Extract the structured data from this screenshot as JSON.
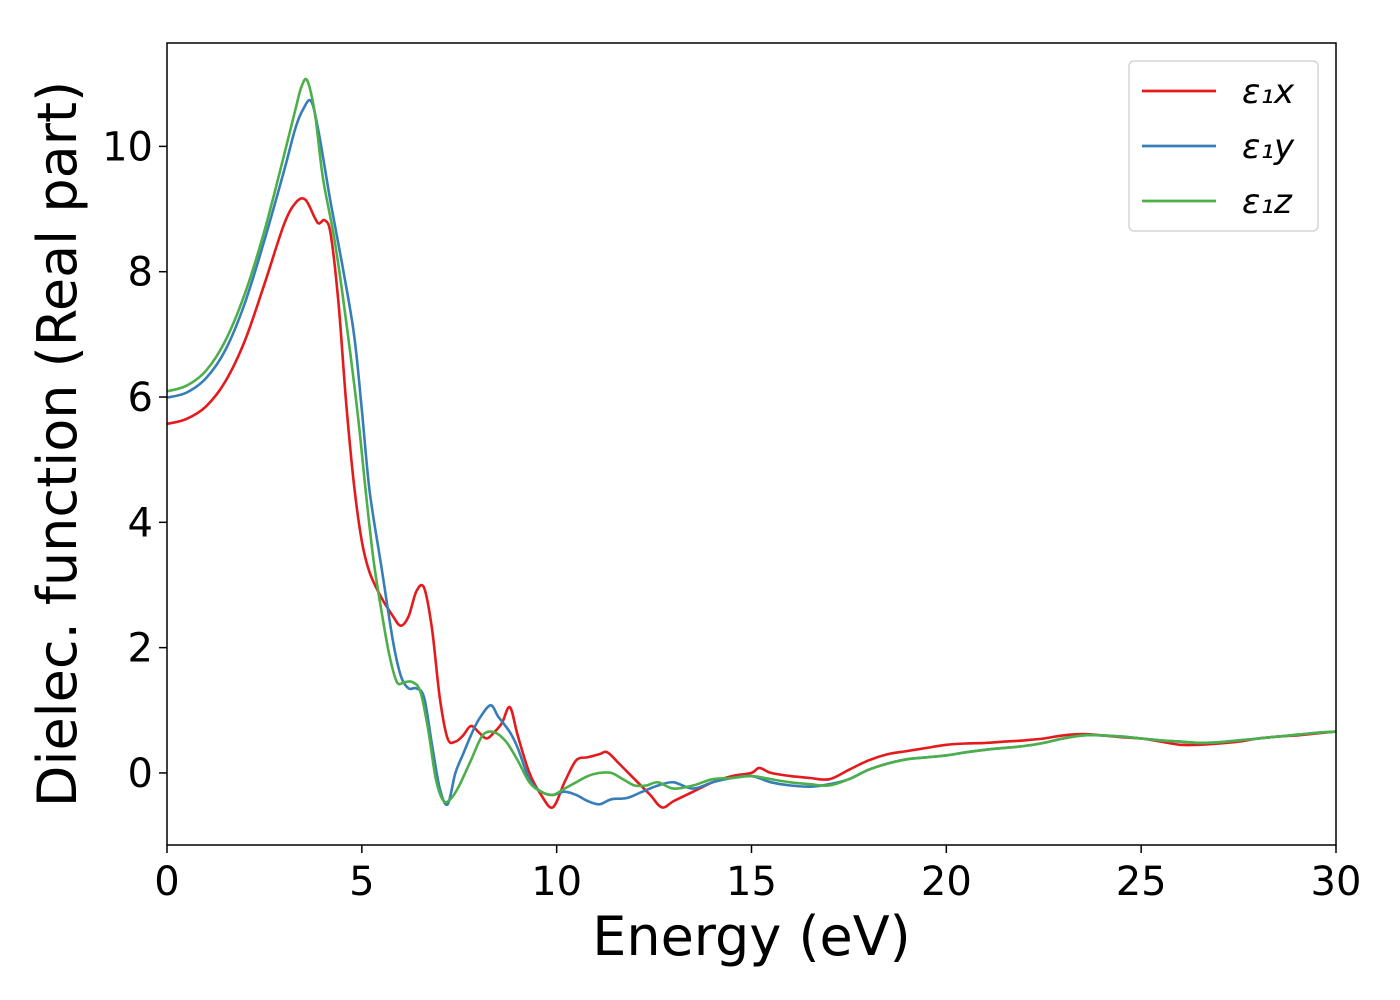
{
  "chart_data": {
    "type": "line",
    "xlabel": "Energy (eV)",
    "ylabel": "Dielec. function (Real part)",
    "xlim": [
      0,
      30
    ],
    "ylim": [
      -1.15,
      11.65
    ],
    "xticks": [
      0,
      5,
      10,
      15,
      20,
      25,
      30
    ],
    "yticks": [
      0,
      2,
      4,
      6,
      8,
      10
    ],
    "grid": false,
    "legend_position": "top-right",
    "series": [
      {
        "name": "ε₁x",
        "color": "#e41a1c",
        "x": [
          0,
          0.5,
          1,
          1.5,
          2,
          2.5,
          3,
          3.3,
          3.55,
          3.8,
          3.9,
          4.05,
          4.2,
          4.4,
          4.6,
          4.8,
          5,
          5.2,
          5.5,
          5.8,
          6.0,
          6.2,
          6.4,
          6.6,
          6.8,
          7.0,
          7.2,
          7.4,
          7.6,
          7.8,
          8.0,
          8.2,
          8.4,
          8.6,
          8.8,
          9.0,
          9.3,
          9.6,
          9.9,
          10.2,
          10.5,
          10.8,
          11.1,
          11.3,
          11.6,
          12.0,
          12.4,
          12.7,
          13.0,
          13.5,
          14.0,
          14.5,
          15.0,
          15.2,
          15.5,
          16.0,
          16.5,
          17.0,
          17.5,
          18.0,
          18.5,
          19.0,
          19.5,
          20.0,
          20.5,
          21.0,
          21.5,
          22.0,
          22.5,
          23.0,
          23.5,
          24.0,
          24.5,
          25.0,
          25.5,
          26.0,
          26.5,
          27.0,
          27.5,
          28.0,
          28.5,
          29.0,
          29.5,
          30.0
        ],
        "y": [
          5.57,
          5.65,
          5.85,
          6.25,
          6.9,
          7.8,
          8.75,
          9.1,
          9.15,
          8.85,
          8.77,
          8.82,
          8.6,
          7.5,
          5.9,
          4.6,
          3.7,
          3.2,
          2.8,
          2.5,
          2.35,
          2.5,
          2.9,
          2.95,
          2.3,
          1.2,
          0.55,
          0.5,
          0.6,
          0.75,
          0.65,
          0.55,
          0.65,
          0.8,
          1.05,
          0.6,
          0.0,
          -0.35,
          -0.55,
          -0.15,
          0.2,
          0.25,
          0.3,
          0.33,
          0.15,
          -0.1,
          -0.35,
          -0.55,
          -0.45,
          -0.3,
          -0.15,
          -0.05,
          0.0,
          0.08,
          0.0,
          -0.05,
          -0.08,
          -0.1,
          0.05,
          0.2,
          0.3,
          0.35,
          0.4,
          0.45,
          0.47,
          0.48,
          0.5,
          0.52,
          0.55,
          0.6,
          0.62,
          0.6,
          0.57,
          0.55,
          0.5,
          0.45,
          0.45,
          0.47,
          0.5,
          0.55,
          0.58,
          0.6,
          0.63,
          0.66
        ]
      },
      {
        "name": "ε₁y",
        "color": "#377eb8",
        "x": [
          0,
          0.5,
          1,
          1.5,
          2,
          2.5,
          3,
          3.3,
          3.5,
          3.7,
          3.9,
          4.2,
          4.5,
          4.8,
          5.0,
          5.2,
          5.5,
          5.8,
          6.0,
          6.2,
          6.4,
          6.6,
          6.8,
          7.0,
          7.2,
          7.4,
          7.6,
          7.8,
          8.0,
          8.3,
          8.5,
          8.8,
          9.0,
          9.3,
          9.6,
          9.9,
          10.2,
          10.5,
          10.8,
          11.1,
          11.4,
          11.8,
          12.2,
          12.6,
          13.0,
          13.5,
          14.0,
          14.5,
          15.0,
          15.5,
          16.0,
          16.5,
          17.0,
          17.5,
          18.0,
          18.5,
          19.0,
          19.5,
          20.0,
          20.5,
          21.0,
          21.5,
          22.0,
          22.5,
          23.0,
          23.5,
          24.0,
          24.5,
          25.0,
          25.5,
          26.0,
          26.5,
          27.0,
          27.5,
          28.0,
          28.5,
          29.0,
          29.5,
          30.0
        ],
        "y": [
          5.99,
          6.07,
          6.3,
          6.75,
          7.5,
          8.5,
          9.6,
          10.3,
          10.6,
          10.72,
          10.2,
          9.1,
          8.1,
          7.0,
          5.8,
          4.5,
          3.3,
          2.1,
          1.55,
          1.35,
          1.35,
          1.2,
          0.45,
          -0.25,
          -0.5,
          0.0,
          0.3,
          0.6,
          0.85,
          1.08,
          0.9,
          0.65,
          0.4,
          -0.1,
          -0.3,
          -0.35,
          -0.3,
          -0.35,
          -0.45,
          -0.5,
          -0.42,
          -0.4,
          -0.3,
          -0.2,
          -0.15,
          -0.25,
          -0.15,
          -0.08,
          -0.05,
          -0.15,
          -0.2,
          -0.22,
          -0.18,
          -0.1,
          0.05,
          0.15,
          0.22,
          0.25,
          0.28,
          0.33,
          0.37,
          0.4,
          0.43,
          0.48,
          0.55,
          0.6,
          0.6,
          0.58,
          0.55,
          0.52,
          0.5,
          0.48,
          0.49,
          0.52,
          0.55,
          0.58,
          0.61,
          0.64,
          0.66
        ]
      },
      {
        "name": "ε₁z",
        "color": "#4daf4a",
        "x": [
          0,
          0.5,
          1,
          1.5,
          2,
          2.5,
          3,
          3.3,
          3.45,
          3.6,
          3.8,
          4.0,
          4.3,
          4.6,
          4.9,
          5.1,
          5.3,
          5.5,
          5.7,
          5.9,
          6.1,
          6.3,
          6.5,
          6.7,
          6.9,
          7.1,
          7.3,
          7.5,
          7.8,
          8.1,
          8.4,
          8.7,
          9.0,
          9.3,
          9.6,
          9.9,
          10.2,
          10.5,
          10.8,
          11.1,
          11.4,
          11.7,
          12.0,
          12.3,
          12.6,
          13.0,
          13.5,
          14.0,
          14.5,
          15.0,
          15.5,
          16.0,
          16.5,
          17.0,
          17.5,
          18.0,
          18.5,
          19.0,
          19.5,
          20.0,
          20.5,
          21.0,
          21.5,
          22.0,
          22.5,
          23.0,
          23.5,
          24.0,
          24.5,
          25.0,
          25.5,
          26.0,
          26.5,
          27.0,
          27.5,
          28.0,
          28.5,
          29.0,
          29.5,
          30.0
        ],
        "y": [
          6.09,
          6.18,
          6.42,
          6.9,
          7.65,
          8.65,
          9.85,
          10.6,
          10.95,
          11.05,
          10.5,
          9.5,
          8.5,
          7.2,
          5.7,
          4.5,
          3.4,
          2.6,
          1.9,
          1.45,
          1.45,
          1.45,
          1.3,
          0.7,
          -0.1,
          -0.45,
          -0.4,
          -0.2,
          0.2,
          0.6,
          0.65,
          0.5,
          0.2,
          -0.15,
          -0.3,
          -0.35,
          -0.25,
          -0.15,
          -0.05,
          0.0,
          0.0,
          -0.1,
          -0.2,
          -0.2,
          -0.15,
          -0.25,
          -0.2,
          -0.1,
          -0.08,
          -0.05,
          -0.1,
          -0.15,
          -0.18,
          -0.2,
          -0.1,
          0.05,
          0.15,
          0.22,
          0.25,
          0.28,
          0.33,
          0.37,
          0.4,
          0.43,
          0.48,
          0.55,
          0.6,
          0.6,
          0.58,
          0.55,
          0.52,
          0.5,
          0.48,
          0.49,
          0.52,
          0.55,
          0.58,
          0.61,
          0.64,
          0.66
        ]
      }
    ]
  }
}
